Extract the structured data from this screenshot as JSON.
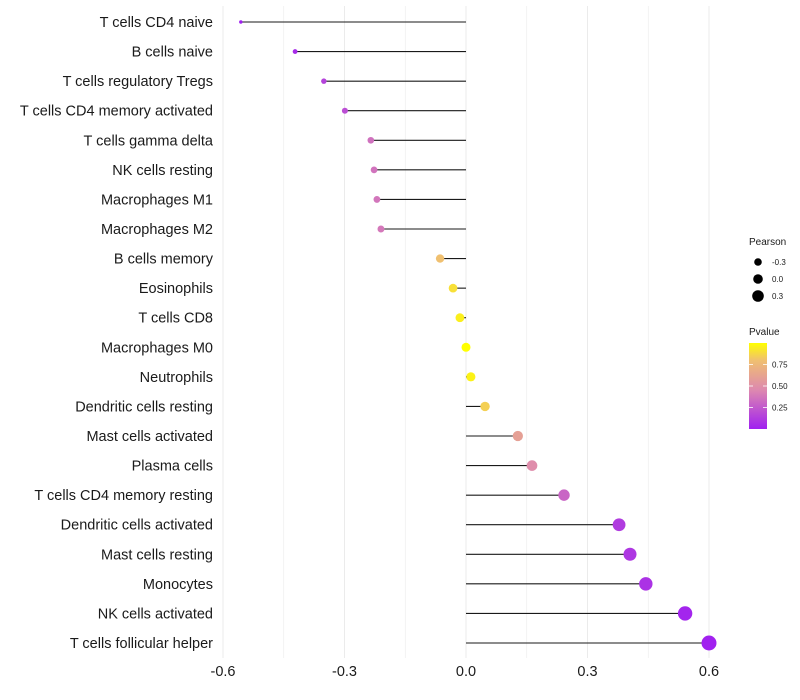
{
  "chart_data": {
    "type": "lollipop",
    "title": "",
    "xlabel": "",
    "ylabel": "",
    "xlim": [
      -0.62,
      0.62
    ],
    "xticks": [
      -0.6,
      -0.3,
      0.0,
      0.3,
      0.6
    ],
    "xtick_labels": [
      "-0.6",
      "-0.3",
      "0.0",
      "0.3",
      "0.6"
    ],
    "grid": true,
    "categories": [
      "T cells CD4 naive",
      "B cells naive",
      "T cells regulatory  Tregs ",
      "T cells CD4 memory activated",
      "T cells gamma delta",
      "NK cells resting",
      "Macrophages M1",
      "Macrophages M2",
      "B cells memory",
      "Eosinophils",
      "T cells CD8",
      "Macrophages M0",
      "Neutrophils",
      "Dendritic cells resting",
      "Mast cells activated",
      "Plasma cells",
      "T cells CD4 memory resting",
      "Dendritic cells activated",
      "Mast cells resting",
      "Monocytes",
      "NK cells activated",
      "T cells follicular helper"
    ],
    "values": [
      -0.556,
      -0.422,
      -0.351,
      -0.299,
      -0.235,
      -0.227,
      -0.22,
      -0.21,
      -0.064,
      -0.032,
      -0.015,
      0.0,
      0.012,
      0.047,
      0.128,
      0.163,
      0.242,
      0.378,
      0.405,
      0.444,
      0.541,
      0.6
    ],
    "pvalues": [
      0.001,
      0.05,
      0.15,
      0.2,
      0.35,
      0.36,
      0.37,
      0.38,
      0.8,
      0.9,
      0.95,
      1.0,
      0.96,
      0.85,
      0.6,
      0.48,
      0.3,
      0.12,
      0.1,
      0.08,
      0.02,
      0.005
    ],
    "legend": {
      "placement": "right",
      "size": {
        "title": "Pearson",
        "labels": [
          "-0.3",
          "0.0",
          "0.3"
        ],
        "values": [
          -0.3,
          0.0,
          0.3
        ]
      },
      "color": {
        "title": "Pvalue",
        "labels": [
          "0.75",
          "0.50",
          "0.25"
        ],
        "values": [
          0.75,
          0.5,
          0.25
        ],
        "range": [
          0,
          1
        ],
        "low_color": "#a020f0",
        "mid_color": "#dd88b0",
        "high_color": "#f0c070",
        "top_color": "#ffff00"
      }
    },
    "colors": {
      "stem": "#1a1a1a",
      "grid": "#ebebeb",
      "size_key": "#000000"
    }
  }
}
